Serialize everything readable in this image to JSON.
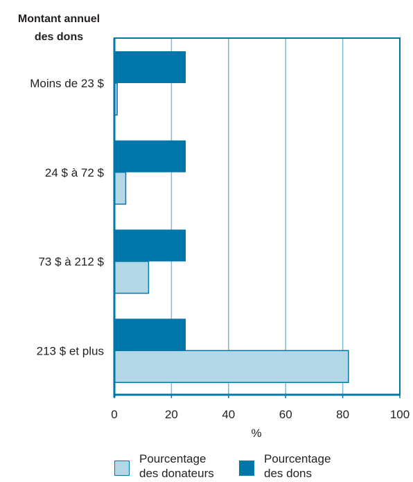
{
  "chart_data": {
    "type": "bar",
    "orientation": "horizontal",
    "ylabel": "Montant annuel des dons",
    "ylabel_lines": [
      "Montant annuel",
      "des dons"
    ],
    "xlabel": "%",
    "xlim": [
      0,
      100
    ],
    "xticks": [
      "0",
      "20",
      "40",
      "60",
      "80",
      "100"
    ],
    "grid": true,
    "legend_position": "bottom",
    "categories": [
      "Moins de 23 $",
      "24 $ à 72 $",
      "73 $ à 212 $",
      "213 $ et plus"
    ],
    "series": [
      {
        "name": "Pourcentage des dons",
        "name_lines": [
          "Pourcentage",
          "des dons"
        ],
        "color": "#0077a8",
        "values": [
          25,
          25,
          25,
          25
        ]
      },
      {
        "name": "Pourcentage des donateurs",
        "name_lines": [
          "Pourcentage",
          "des donateurs"
        ],
        "color": "#b3d7e6",
        "values": [
          1,
          4,
          12,
          82
        ]
      }
    ],
    "colors": {
      "axis": "#0077a8",
      "grid": "#7fb9d3",
      "bar_outline": "#0077a8"
    }
  }
}
